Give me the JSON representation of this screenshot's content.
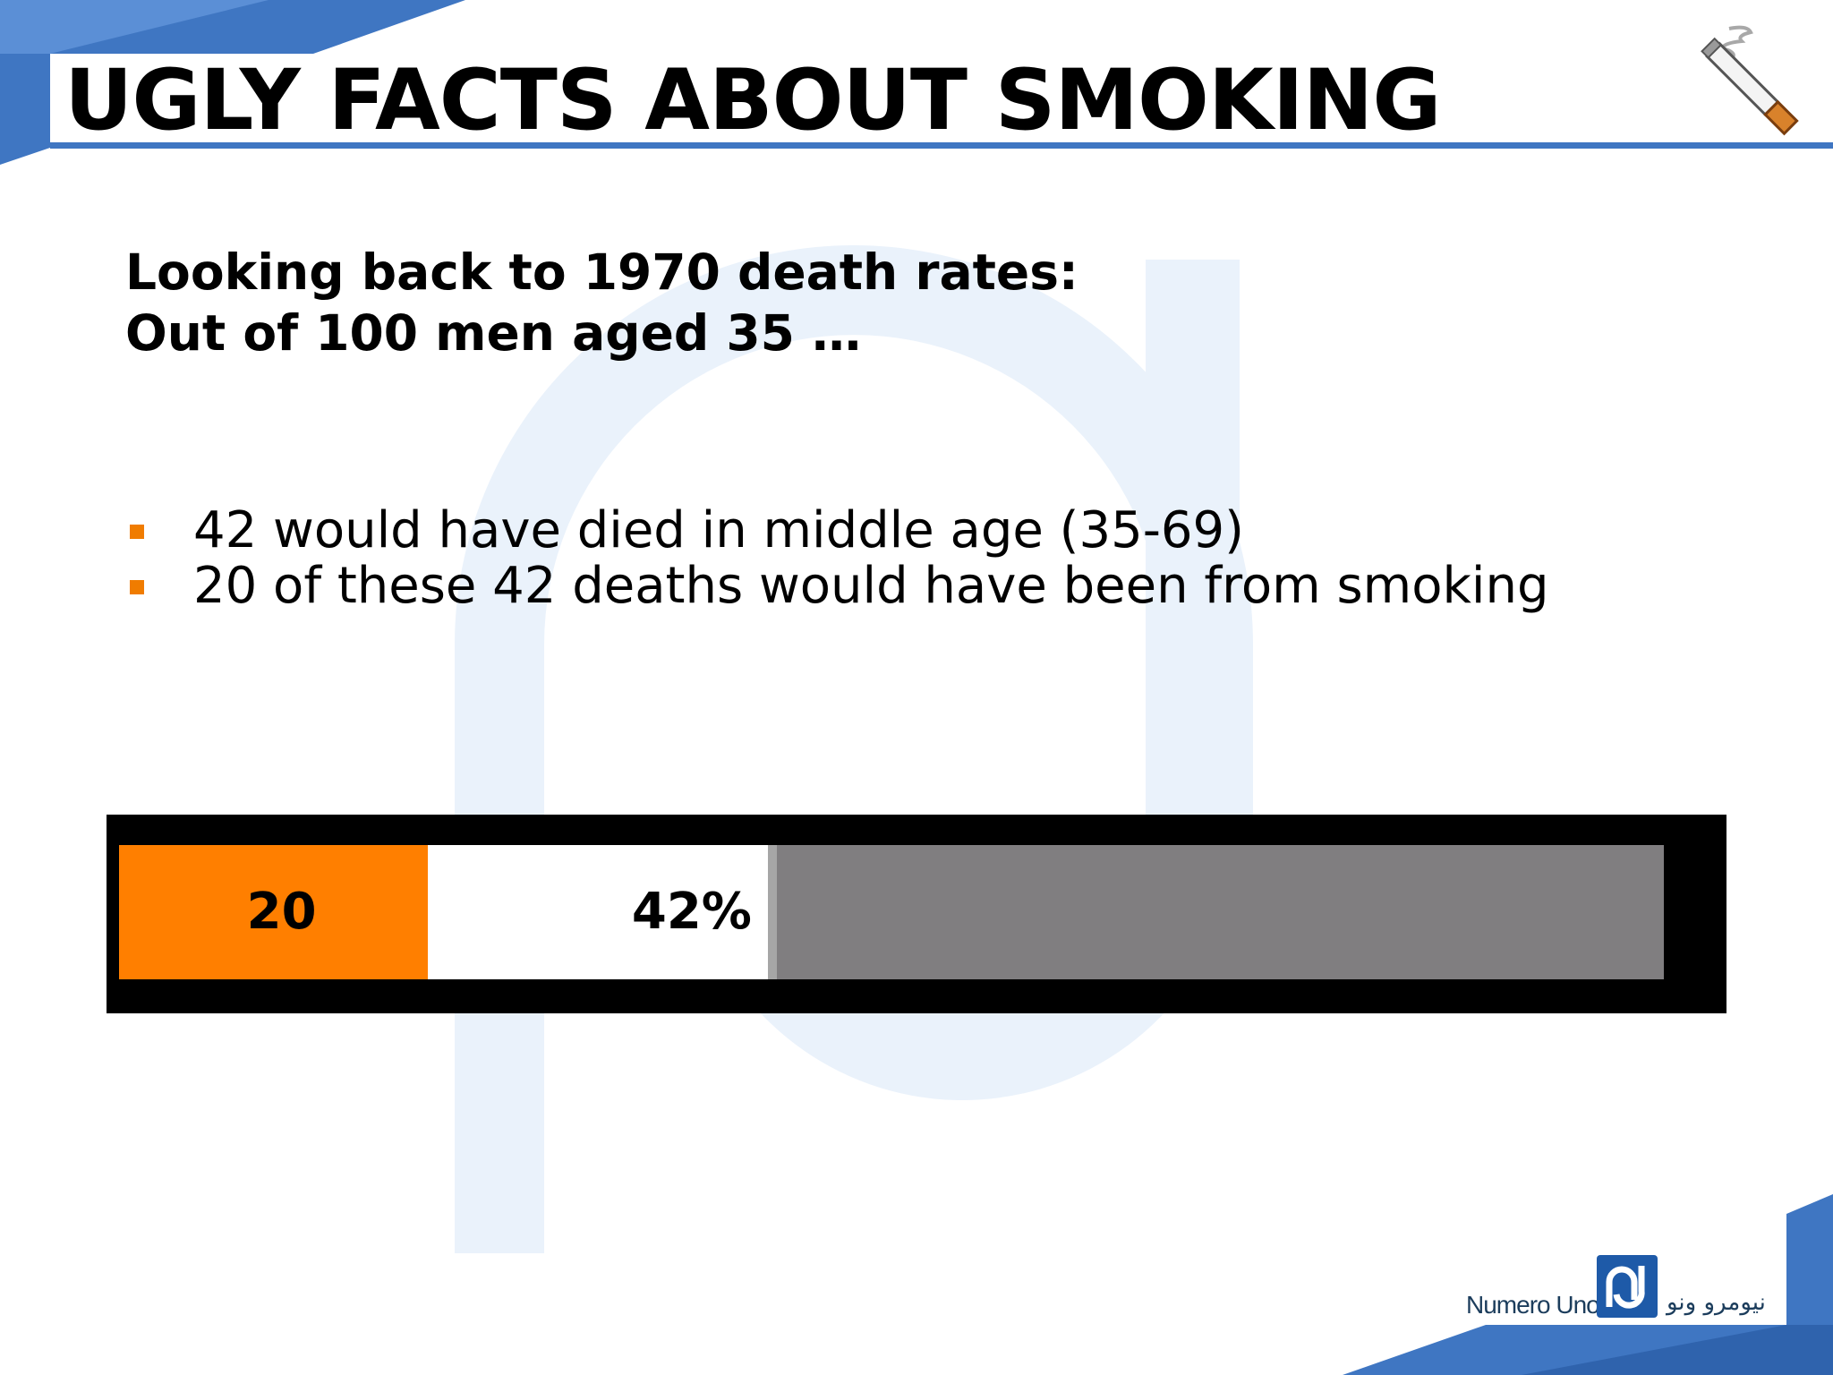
{
  "slide": {
    "title": "UGLY FACTS ABOUT SMOKING",
    "subtitle_lines": [
      "Looking back to 1970 death rates:",
      "Out of 100 men aged 35 …"
    ],
    "bullets": [
      "42 would have died in middle age (35-69)",
      "20 of these 42 deaths would have been from smoking"
    ],
    "colors": {
      "accent_blue": "#3f76c2",
      "bullet_orange": "#f07c00",
      "bar_orange": "#ff7f00",
      "bar_gray": "#807e80",
      "watermark": "#eaf2fb"
    },
    "icons": [
      "cigarette-icon",
      "numero-uno-logo-icon"
    ]
  },
  "chart_data": {
    "type": "bar",
    "orientation": "horizontal",
    "stacked": true,
    "total": 100,
    "segments": [
      {
        "value": 20,
        "label": "20",
        "color": "#ff7f00"
      },
      {
        "value": 22,
        "label": "42%",
        "color": "#ffffff"
      },
      {
        "value": 58,
        "label": "",
        "color": "#807e80"
      }
    ]
  },
  "footer": {
    "logo_text": "Numero Uno",
    "logo_arabic": "نيومرو ونو"
  }
}
